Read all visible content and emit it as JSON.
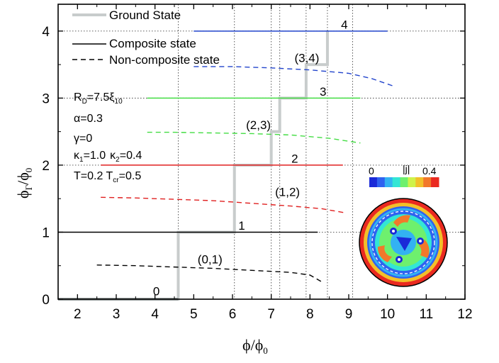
{
  "chart_data": {
    "type": "line",
    "xlabel_main": "ϕ/ϕ",
    "xlabel_sub": "0",
    "ylabel_main": "ϕ",
    "ylabel_sub1": "Γ",
    "ylabel_mid": "/ϕ",
    "ylabel_sub2": "0",
    "xlim": [
      1.5,
      12
    ],
    "ylim": [
      0,
      4.4
    ],
    "xticks": [
      2,
      3,
      4,
      5,
      6,
      7,
      8,
      9,
      10,
      11,
      12
    ],
    "yticks": [
      0,
      1,
      2,
      3,
      4
    ],
    "grid": "dotted vertical lines at ground-state transitions and dotted horizontal lines at integer fluxoid",
    "legend": {
      "placement": "top-left",
      "entries": [
        {
          "label": "Ground State",
          "style": "thick-gray"
        },
        {
          "label": "Composite state",
          "style": "solid"
        },
        {
          "label": "Non-composite state",
          "style": "dashed"
        }
      ]
    },
    "params": {
      "RD_main": "R",
      "RD_sub": "D",
      "RD_eq": "=7.5ξ",
      "RD_sub2": "10",
      "alpha": "α=0.3",
      "gamma": "γ=0",
      "k1_main": "κ",
      "k1_sub": "1",
      "k1_eq": "=1.0",
      "k2_main": "κ",
      "k2_sub": "2",
      "k2_eq": "=0.4",
      "T_main": "T=0.2 T",
      "T_sub": "cr",
      "T_eq": "=0.5"
    },
    "composite_series": [
      {
        "name": "0",
        "color": "#9aa0a0",
        "x": [
          1.5,
          4.6
        ],
        "y": [
          0,
          0
        ],
        "label": "0",
        "label_at": [
          3.95,
          0.12
        ]
      },
      {
        "name": "1",
        "color": "#000000",
        "x": [
          1.5,
          8.2
        ],
        "y": [
          1,
          1
        ],
        "label": "1",
        "label_at": [
          6.15,
          1.1
        ]
      },
      {
        "name": "2",
        "color": "#e02020",
        "x": [
          2.6,
          8.85
        ],
        "y": [
          2,
          2
        ],
        "label": "2",
        "label_at": [
          7.52,
          2.1
        ]
      },
      {
        "name": "3",
        "color": "#44dd44",
        "x": [
          3.8,
          9.3
        ],
        "y": [
          3,
          3
        ],
        "label": "3",
        "label_at": [
          8.25,
          3.1
        ]
      },
      {
        "name": "4",
        "color": "#2244cc",
        "x": [
          5.0,
          10.0
        ],
        "y": [
          4,
          4
        ],
        "label": "4",
        "label_at": [
          8.8,
          4.1
        ]
      }
    ],
    "noncomposite_series": [
      {
        "name": "(0,1)",
        "color": "#000000",
        "x": [
          2.5,
          3.5,
          4.5,
          5.5,
          6.5,
          7.5,
          8.0,
          8.3
        ],
        "y": [
          0.51,
          0.5,
          0.48,
          0.46,
          0.43,
          0.4,
          0.36,
          0.26
        ],
        "label": "(0,1)",
        "label_at": [
          5.1,
          0.6
        ]
      },
      {
        "name": "(1,2)",
        "color": "#e02020",
        "x": [
          2.6,
          3.5,
          4.5,
          5.5,
          6.5,
          7.5,
          8.3,
          8.9
        ],
        "y": [
          1.52,
          1.51,
          1.49,
          1.47,
          1.43,
          1.39,
          1.35,
          1.29
        ],
        "label": "(1,2)",
        "label_at": [
          7.1,
          1.6
        ]
      },
      {
        "name": "(2,3)",
        "color": "#44dd44",
        "x": [
          3.8,
          4.5,
          5.5,
          6.5,
          7.5,
          8.5,
          9.3
        ],
        "y": [
          2.49,
          2.49,
          2.48,
          2.47,
          2.45,
          2.4,
          2.33
        ],
        "label": "(2,3)",
        "label_at": [
          6.35,
          2.6
        ]
      },
      {
        "name": "(3,4)",
        "color": "#2244cc",
        "x": [
          5.0,
          6.0,
          7.0,
          8.0,
          9.0,
          9.6,
          10.2
        ],
        "y": [
          3.47,
          3.47,
          3.45,
          3.42,
          3.37,
          3.29,
          3.17
        ],
        "label": "(3,4)",
        "label_at": [
          7.6,
          3.6
        ]
      }
    ],
    "ground_state": {
      "x": [
        1.5,
        4.6,
        4.6,
        6.05,
        6.05,
        7.0,
        7.0,
        7.22,
        7.22,
        7.9,
        7.9,
        8.45,
        8.45
      ],
      "y": [
        0,
        0,
        1,
        1,
        2,
        2,
        2.5,
        2.5,
        3,
        3,
        3.5,
        3.5,
        4
      ],
      "color": "#c8cccc"
    },
    "transition_lines_x": [
      4.6,
      6.05,
      7.0,
      7.22,
      7.9,
      8.45,
      9.1
    ],
    "colorbar": {
      "title": "|j|",
      "min_label": "0",
      "max_label": "0.4",
      "colors": [
        "#1a2ad8",
        "#2f62f0",
        "#33b2f2",
        "#33e6d5",
        "#6ef06e",
        "#cff24a",
        "#f2c02a",
        "#f2782a",
        "#ea2a20"
      ]
    }
  }
}
